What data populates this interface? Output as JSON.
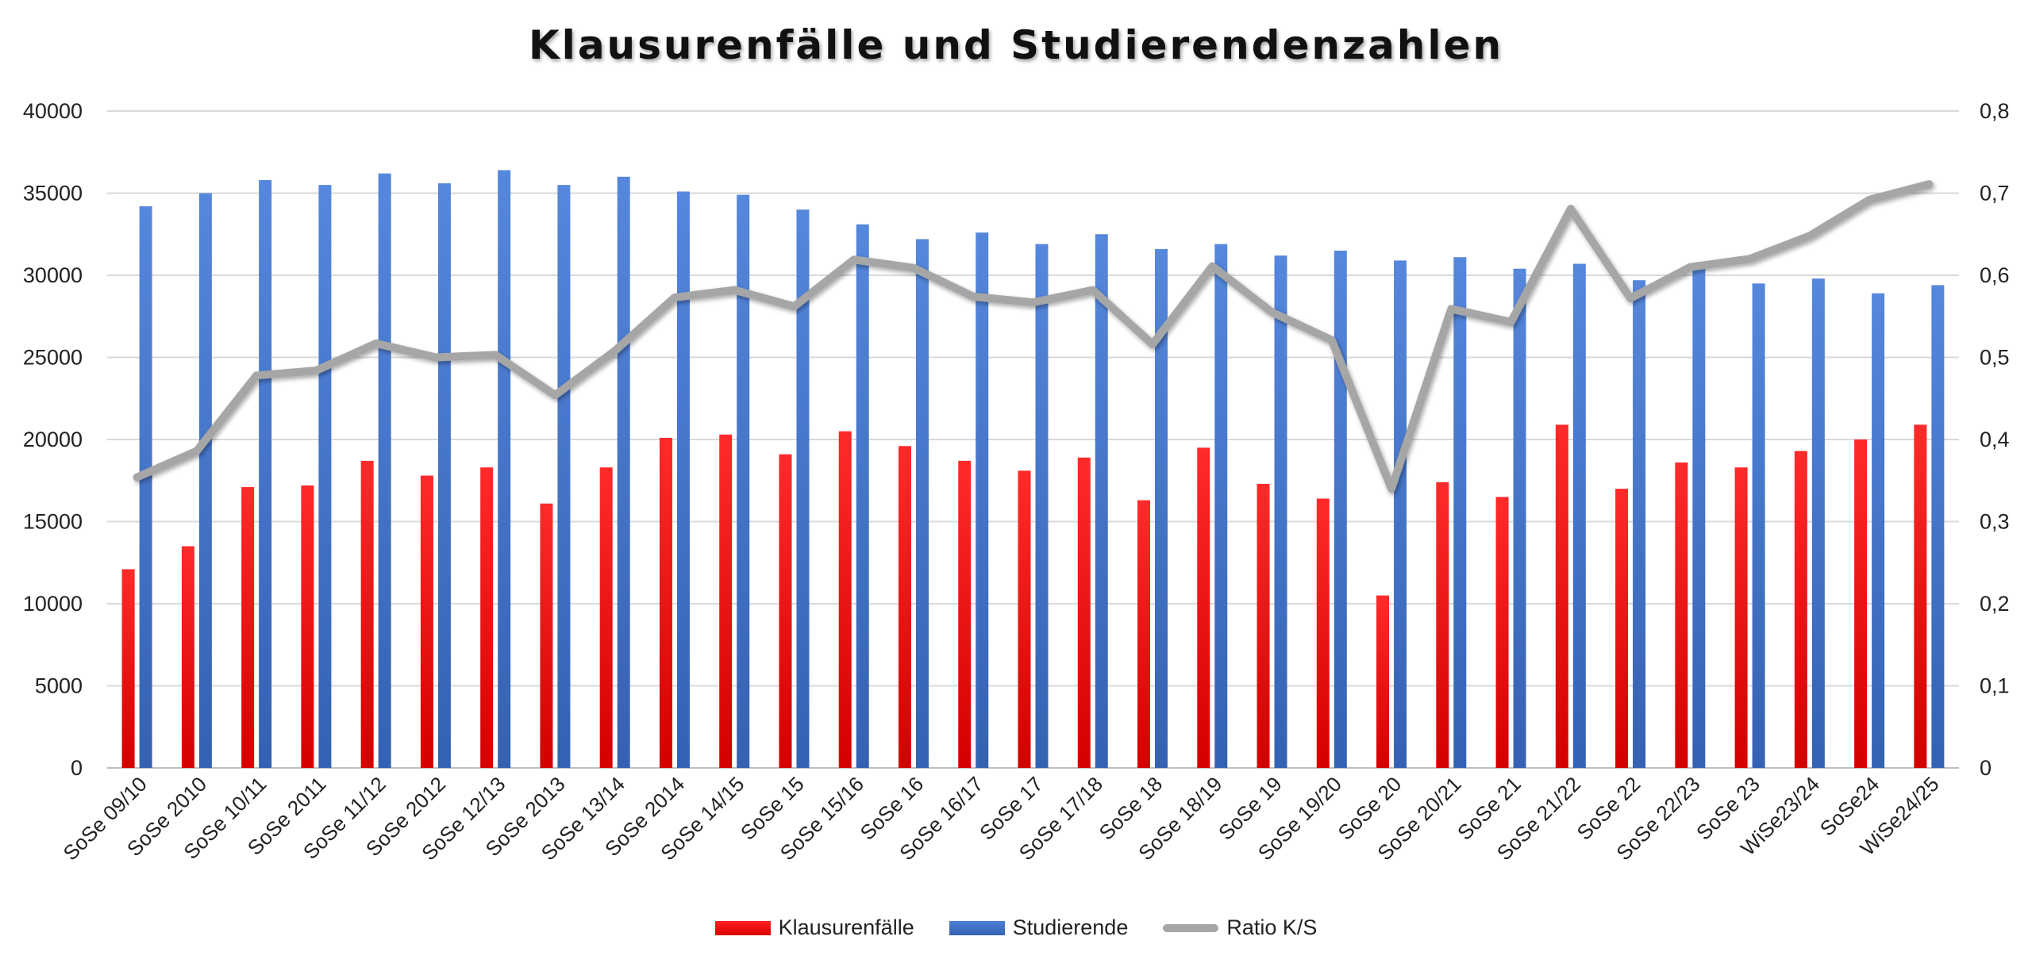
{
  "chart_data": {
    "type": "bar",
    "title": "Klausurenfälle und Studierendenzahlen",
    "categories": [
      "SoSe 09/10",
      "SoSe 2010",
      "SoSe 10/11",
      "SoSe 2011",
      "SoSe 11/12",
      "SoSe 2012",
      "SoSe 12/13",
      "SoSe 2013",
      "SoSe 13/14",
      "SoSe 2014",
      "SoSe 14/15",
      "SoSe 15",
      "SoSe 15/16",
      "SoSe 16",
      "SoSe 16/17",
      "SoSe 17",
      "SoSe 17/18",
      "SoSe 18",
      "SoSe 18/19",
      "SoSe 19",
      "SoSe 19/20",
      "SoSe 20",
      "SoSe 20/21",
      "SoSe 21",
      "SoSe 21/22",
      "SoSe 22",
      "SoSe 22/23",
      "SoSe 23",
      "WiSe23/24",
      "SoSe24",
      "WiSe24/25"
    ],
    "series": [
      {
        "name": "Klausurenfälle",
        "axis": "left",
        "kind": "bar",
        "color": "#e00000",
        "values": [
          12100,
          13500,
          17100,
          17200,
          18700,
          17800,
          18300,
          16100,
          18300,
          20100,
          20300,
          19100,
          20500,
          19600,
          18700,
          18100,
          18900,
          16300,
          19500,
          17300,
          16400,
          10500,
          17400,
          16500,
          20900,
          17000,
          18600,
          18300,
          19300,
          20000,
          20900
        ]
      },
      {
        "name": "Studierende",
        "axis": "left",
        "kind": "bar",
        "color": "#4472c4",
        "values": [
          34200,
          35000,
          35800,
          35500,
          36200,
          35600,
          36400,
          35500,
          36000,
          35100,
          34900,
          34000,
          33100,
          32200,
          32600,
          31900,
          32500,
          31600,
          31900,
          31200,
          31500,
          30900,
          31100,
          30400,
          30700,
          29700,
          30500,
          29500,
          29800,
          28900,
          29400
        ]
      },
      {
        "name": "Ratio K/S",
        "axis": "right",
        "kind": "line",
        "color": "#a6a6a6",
        "values": [
          0.354,
          0.386,
          0.478,
          0.484,
          0.517,
          0.5,
          0.503,
          0.454,
          0.508,
          0.573,
          0.582,
          0.562,
          0.619,
          0.609,
          0.574,
          0.567,
          0.582,
          0.516,
          0.611,
          0.555,
          0.521,
          0.34,
          0.559,
          0.543,
          0.681,
          0.572,
          0.61,
          0.62,
          0.648,
          0.692,
          0.711
        ]
      }
    ],
    "ylim_left": [
      0,
      40000
    ],
    "ylim_right": [
      0,
      0.8
    ],
    "yticks_left": [
      "0",
      "5000",
      "10000",
      "15000",
      "20000",
      "25000",
      "30000",
      "35000",
      "40000"
    ],
    "yticks_right": [
      "0",
      "0,1",
      "0,2",
      "0,3",
      "0,4",
      "0,5",
      "0,6",
      "0,7",
      "0,8"
    ],
    "grid": true,
    "legend_position": "bottom-center"
  },
  "legend": {
    "item1": "Klausurenfälle",
    "item2": "Studierende",
    "item3": "Ratio K/S"
  }
}
